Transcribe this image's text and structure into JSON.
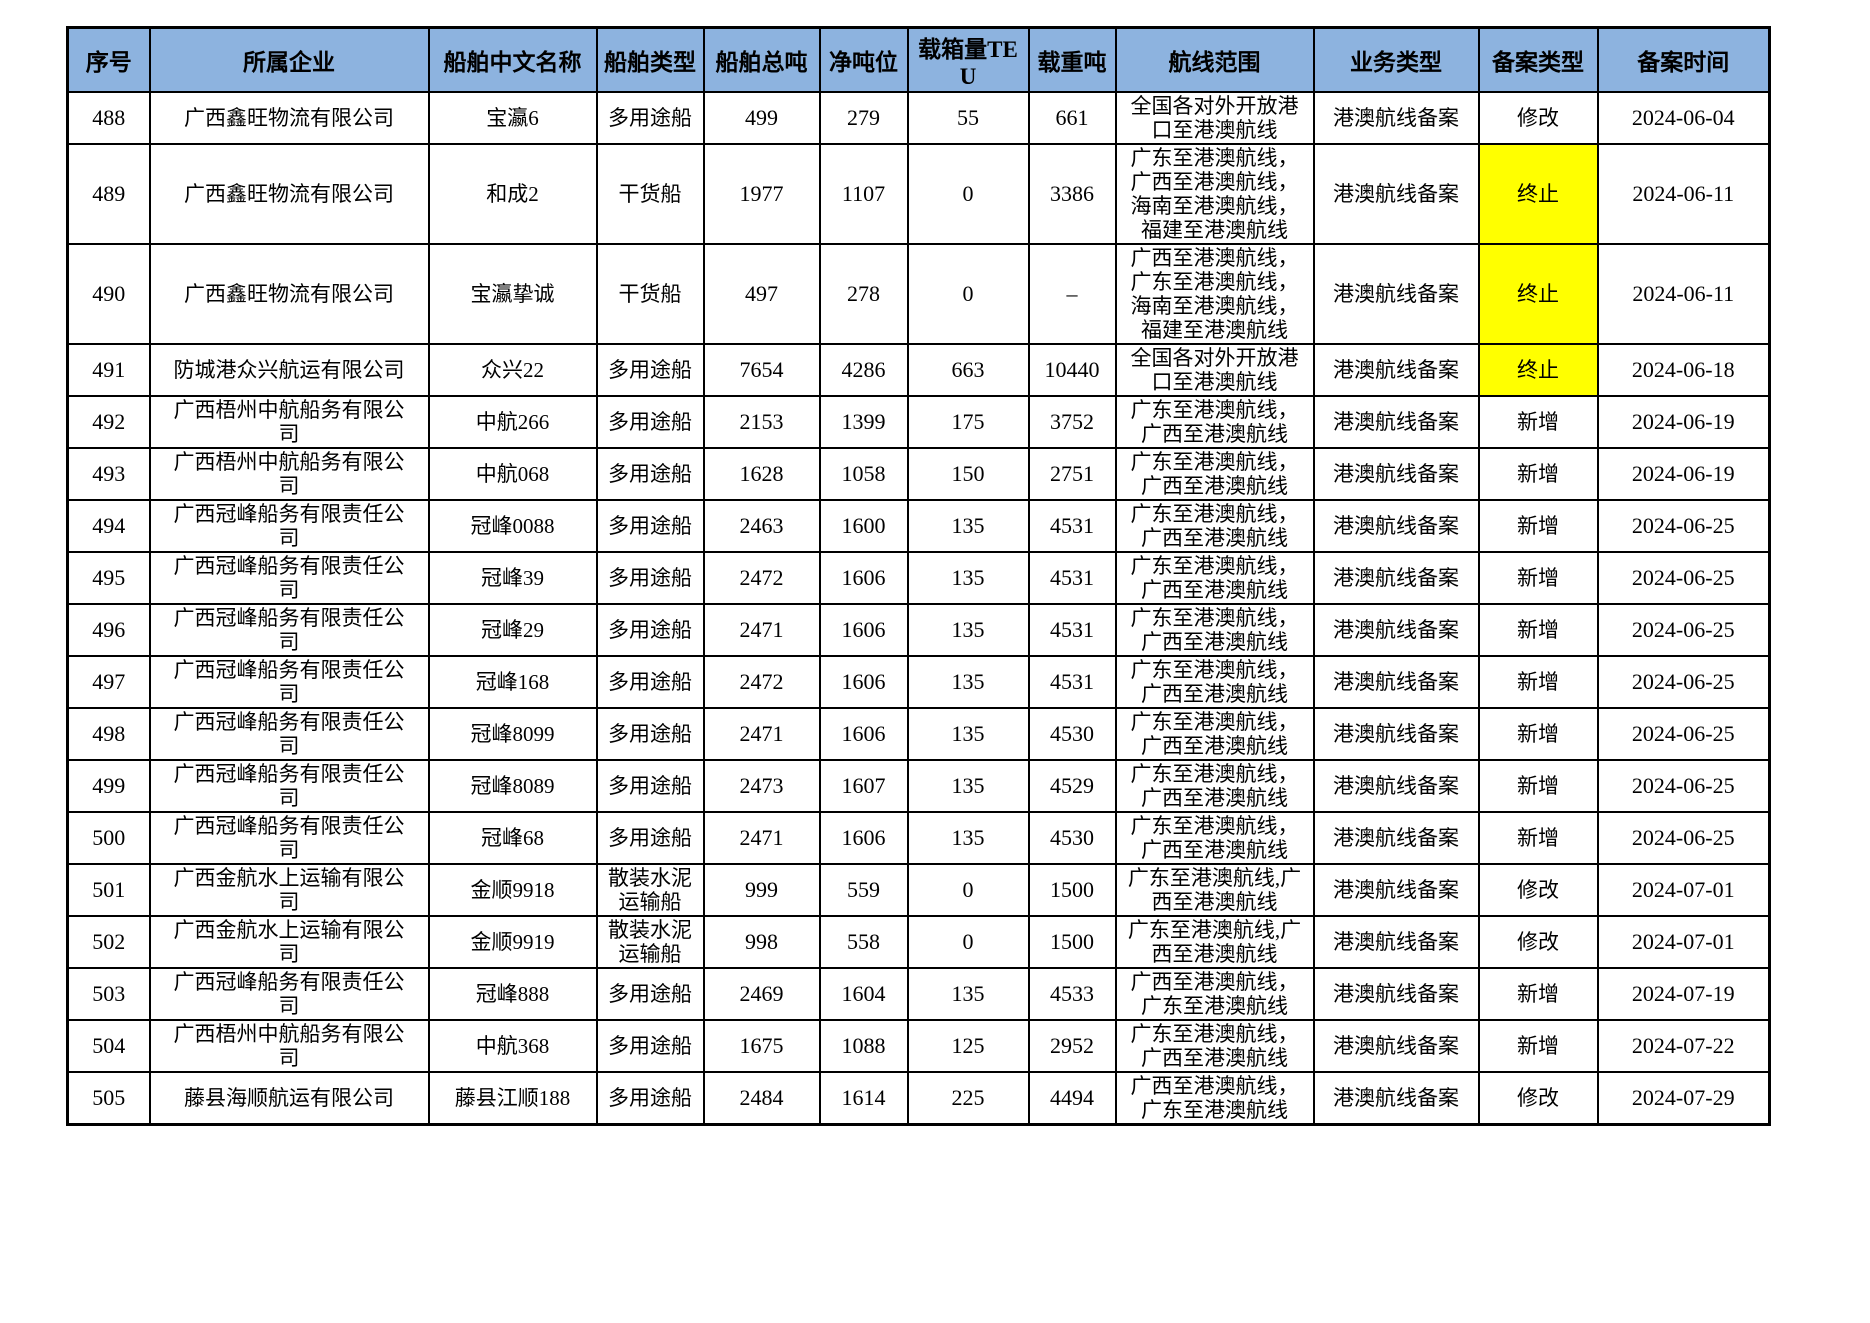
{
  "table": {
    "header_bg": "#8db3df",
    "highlight_color": "#ffff00",
    "columns": [
      "序号",
      "所属企业",
      "船舶中文名称",
      "船舶类型",
      "船舶总吨",
      "净吨位",
      "载箱量TEU",
      "载重吨",
      "航线范围",
      "业务类型",
      "备案类型",
      "备案时间"
    ],
    "rows": [
      {
        "cells": [
          "488",
          "广西鑫旺物流有限公司",
          "宝瀛6",
          "多用途船",
          "499",
          "279",
          "55",
          "661",
          "全国各对外开放港口至港澳航线",
          "港澳航线备案",
          "修改",
          "2024-06-04"
        ],
        "filing_highlight": false
      },
      {
        "cells": [
          "489",
          "广西鑫旺物流有限公司",
          "和成2",
          "干货船",
          "1977",
          "1107",
          "0",
          "3386",
          "广东至港澳航线，广西至港澳航线，海南至港澳航线，福建至港澳航线",
          "港澳航线备案",
          "终止",
          "2024-06-11"
        ],
        "filing_highlight": true
      },
      {
        "cells": [
          "490",
          "广西鑫旺物流有限公司",
          "宝瀛挚诚",
          "干货船",
          "497",
          "278",
          "0",
          "–",
          "广西至港澳航线，广东至港澳航线，海南至港澳航线，福建至港澳航线",
          "港澳航线备案",
          "终止",
          "2024-06-11"
        ],
        "filing_highlight": true
      },
      {
        "cells": [
          "491",
          "防城港众兴航运有限公司",
          "众兴22",
          "多用途船",
          "7654",
          "4286",
          "663",
          "10440",
          "全国各对外开放港口至港澳航线",
          "港澳航线备案",
          "终止",
          "2024-06-18"
        ],
        "filing_highlight": true
      },
      {
        "cells": [
          "492",
          "广西梧州中航船务有限公司",
          "中航266",
          "多用途船",
          "2153",
          "1399",
          "175",
          "3752",
          "广东至港澳航线，广西至港澳航线",
          "港澳航线备案",
          "新增",
          "2024-06-19"
        ],
        "filing_highlight": false
      },
      {
        "cells": [
          "493",
          "广西梧州中航船务有限公司",
          "中航068",
          "多用途船",
          "1628",
          "1058",
          "150",
          "2751",
          "广东至港澳航线，广西至港澳航线",
          "港澳航线备案",
          "新增",
          "2024-06-19"
        ],
        "filing_highlight": false
      },
      {
        "cells": [
          "494",
          "广西冠峰船务有限责任公司",
          "冠峰0088",
          "多用途船",
          "2463",
          "1600",
          "135",
          "4531",
          "广东至港澳航线，广西至港澳航线",
          "港澳航线备案",
          "新增",
          "2024-06-25"
        ],
        "filing_highlight": false
      },
      {
        "cells": [
          "495",
          "广西冠峰船务有限责任公司",
          "冠峰39",
          "多用途船",
          "2472",
          "1606",
          "135",
          "4531",
          "广东至港澳航线，广西至港澳航线",
          "港澳航线备案",
          "新增",
          "2024-06-25"
        ],
        "filing_highlight": false
      },
      {
        "cells": [
          "496",
          "广西冠峰船务有限责任公司",
          "冠峰29",
          "多用途船",
          "2471",
          "1606",
          "135",
          "4531",
          "广东至港澳航线，广西至港澳航线",
          "港澳航线备案",
          "新增",
          "2024-06-25"
        ],
        "filing_highlight": false
      },
      {
        "cells": [
          "497",
          "广西冠峰船务有限责任公司",
          "冠峰168",
          "多用途船",
          "2472",
          "1606",
          "135",
          "4531",
          "广东至港澳航线，广西至港澳航线",
          "港澳航线备案",
          "新增",
          "2024-06-25"
        ],
        "filing_highlight": false
      },
      {
        "cells": [
          "498",
          "广西冠峰船务有限责任公司",
          "冠峰8099",
          "多用途船",
          "2471",
          "1606",
          "135",
          "4530",
          "广东至港澳航线，广西至港澳航线",
          "港澳航线备案",
          "新增",
          "2024-06-25"
        ],
        "filing_highlight": false
      },
      {
        "cells": [
          "499",
          "广西冠峰船务有限责任公司",
          "冠峰8089",
          "多用途船",
          "2473",
          "1607",
          "135",
          "4529",
          "广东至港澳航线，广西至港澳航线",
          "港澳航线备案",
          "新增",
          "2024-06-25"
        ],
        "filing_highlight": false
      },
      {
        "cells": [
          "500",
          "广西冠峰船务有限责任公司",
          "冠峰68",
          "多用途船",
          "2471",
          "1606",
          "135",
          "4530",
          "广东至港澳航线，广西至港澳航线",
          "港澳航线备案",
          "新增",
          "2024-06-25"
        ],
        "filing_highlight": false
      },
      {
        "cells": [
          "501",
          "广西金航水上运输有限公司",
          "金顺9918",
          "散装水泥运输船",
          "999",
          "559",
          "0",
          "1500",
          "广东至港澳航线,广西至港澳航线",
          "港澳航线备案",
          "修改",
          "2024-07-01"
        ],
        "filing_highlight": false
      },
      {
        "cells": [
          "502",
          "广西金航水上运输有限公司",
          "金顺9919",
          "散装水泥运输船",
          "998",
          "558",
          "0",
          "1500",
          "广东至港澳航线,广西至港澳航线",
          "港澳航线备案",
          "修改",
          "2024-07-01"
        ],
        "filing_highlight": false
      },
      {
        "cells": [
          "503",
          "广西冠峰船务有限责任公司",
          "冠峰888",
          "多用途船",
          "2469",
          "1604",
          "135",
          "4533",
          "广西至港澳航线，广东至港澳航线",
          "港澳航线备案",
          "新增",
          "2024-07-19"
        ],
        "filing_highlight": false
      },
      {
        "cells": [
          "504",
          "广西梧州中航船务有限公司",
          "中航368",
          "多用途船",
          "1675",
          "1088",
          "125",
          "2952",
          "广东至港澳航线，广西至港澳航线",
          "港澳航线备案",
          "新增",
          "2024-07-22"
        ],
        "filing_highlight": false
      },
      {
        "cells": [
          "505",
          "藤县海顺航运有限公司",
          "藤县江顺188",
          "多用途船",
          "2484",
          "1614",
          "225",
          "4494",
          "广西至港澳航线，广东至港澳航线",
          "港澳航线备案",
          "修改",
          "2024-07-29"
        ],
        "filing_highlight": false
      }
    ]
  }
}
